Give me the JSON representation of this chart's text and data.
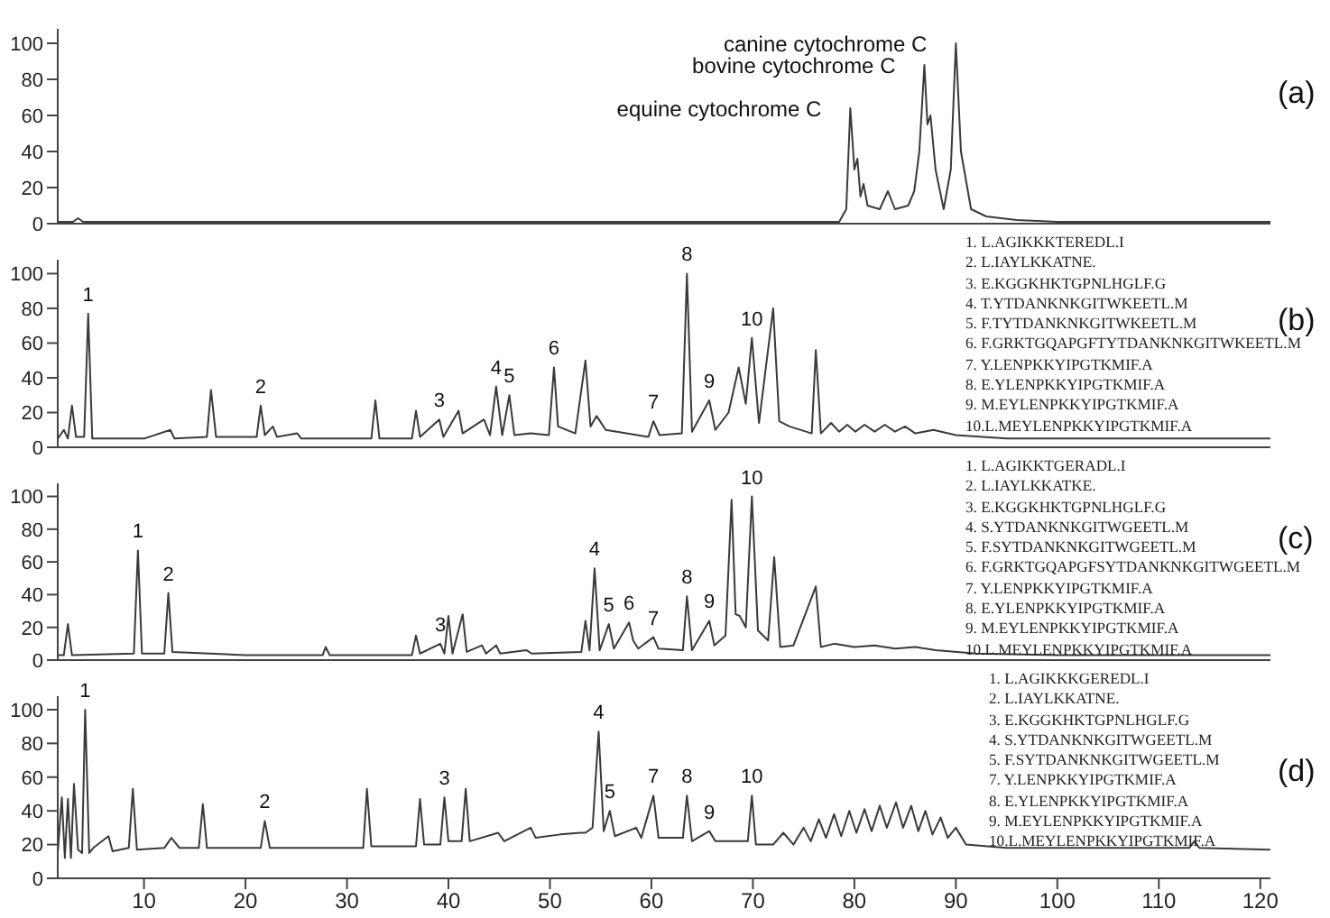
{
  "chart_data": [
    {
      "type": "line",
      "title": "(a)",
      "color": "#3a3a3a",
      "xlim": [
        1.5,
        121
      ],
      "xticks": [
        10,
        20,
        30,
        40,
        50,
        60,
        70,
        80,
        90,
        100,
        110,
        120
      ],
      "ylim": [
        0,
        108
      ],
      "yticks": [
        0,
        20,
        40,
        60,
        80,
        100
      ],
      "tick_labels": "y",
      "x": [
        1.5,
        3,
        3.5,
        4,
        20,
        40,
        60,
        78.5,
        79.2,
        79.6,
        80.0,
        80.3,
        80.6,
        80.9,
        81.3,
        82.5,
        83.3,
        84,
        85.3,
        85.9,
        86.4,
        86.9,
        87.2,
        87.5,
        88,
        88.8,
        89.5,
        90.0,
        90.5,
        91.5,
        93,
        96,
        100,
        110,
        121
      ],
      "values": [
        1,
        1,
        3,
        1,
        1,
        1,
        1,
        1,
        8,
        64,
        30,
        36,
        15,
        22,
        10,
        8,
        18,
        8,
        10,
        18,
        40,
        88,
        55,
        60,
        30,
        8,
        30,
        100,
        40,
        8,
        4,
        2,
        1,
        1,
        1
      ],
      "annotations": [
        {
          "text": "equine cytochrome C",
          "x": 79.6,
          "y": 64
        },
        {
          "text": "bovine cytochrome C",
          "x": 86.9,
          "y": 88
        },
        {
          "text": "canine cytochrome C",
          "x": 90.0,
          "y": 100
        }
      ]
    },
    {
      "type": "line",
      "title": "(b)",
      "color": "#3a3a3a",
      "xlim": [
        1.5,
        121
      ],
      "xticks": [
        10,
        20,
        30,
        40,
        50,
        60,
        70,
        80,
        90,
        100,
        110,
        120
      ],
      "ylim": [
        0,
        108
      ],
      "yticks": [
        0,
        20,
        40,
        60,
        80,
        100
      ],
      "tick_labels": "y",
      "x": [
        1.5,
        2.1,
        2.5,
        2.9,
        3.3,
        4.1,
        4.5,
        4.9,
        10,
        12.6,
        13,
        16.2,
        16.6,
        17.1,
        21.1,
        21.5,
        21.9,
        22.7,
        23.1,
        25.1,
        25.5,
        32.4,
        32.8,
        33.2,
        36.4,
        36.8,
        37.2,
        39.1,
        39.5,
        41.0,
        41.4,
        43.5,
        44.1,
        44.7,
        45.3,
        46.0,
        46.5,
        48.1,
        49.9,
        50.4,
        50.8,
        52.5,
        53.5,
        54,
        54.6,
        55.5,
        59.7,
        60.2,
        60.8,
        63.0,
        63.5,
        64.0,
        65.7,
        66.3,
        67.6,
        68.6,
        69.3,
        69.9,
        70.6,
        72.0,
        72.6,
        73.6,
        75.8,
        76.2,
        76.7,
        77.7,
        78.5,
        79.3,
        80.1,
        81,
        82,
        83,
        84,
        85,
        86,
        87.8,
        90,
        95,
        116,
        121
      ],
      "values": [
        5,
        10,
        5,
        24,
        6,
        6,
        77,
        5,
        5,
        10,
        5,
        6,
        33,
        6,
        6,
        24,
        7,
        12,
        6,
        8,
        5,
        5,
        27,
        5,
        5,
        21,
        6,
        16,
        6,
        21,
        8,
        16,
        7,
        35,
        7,
        30,
        7,
        8,
        7,
        46,
        12,
        8,
        50,
        12,
        18,
        10,
        6,
        15,
        7,
        8,
        100,
        9,
        27,
        10,
        20,
        46,
        25,
        63,
        14,
        80,
        15,
        12,
        8,
        56,
        8,
        14,
        9,
        13,
        9,
        13,
        9,
        13,
        9,
        12,
        8,
        10,
        7,
        5,
        5,
        5
      ],
      "annotations": [
        {
          "text": "1",
          "x": 4.5,
          "y": 77
        },
        {
          "text": "2",
          "x": 21.5,
          "y": 24
        },
        {
          "text": "3",
          "x": 39.1,
          "y": 16
        },
        {
          "text": "4",
          "x": 44.7,
          "y": 35
        },
        {
          "text": "5",
          "x": 46.0,
          "y": 30
        },
        {
          "text": "6",
          "x": 50.4,
          "y": 46
        },
        {
          "text": "7",
          "x": 60.2,
          "y": 15
        },
        {
          "text": "8",
          "x": 63.5,
          "y": 100
        },
        {
          "text": "9",
          "x": 65.7,
          "y": 27
        },
        {
          "text": "10",
          "x": 69.9,
          "y": 63
        },
        "1. L.AGIKKKTEREDL.I",
        "2. L.IAYLKKATNE.",
        "3. E.KGGKHKTGPNLHGLF.G",
        "4. T.YTDANKNKGITWKEETL.M",
        "5. F.TYTDANKNKGITWKEETL.M",
        "6. F.GRKTGQAPGFTYTDANKNKGITWKEETL.M",
        "7. Y.LENPKKYIPGTKMIF.A",
        "8. E.YLENPKKYIPGTKMIF.A",
        "9. M.EYLENPKKYIPGTKMIF.A",
        "10.L.MEYLENPKKYIPGTKMIF.A"
      ]
    },
    {
      "type": "line",
      "title": "(c)",
      "color": "#3a3a3a",
      "xlim": [
        1.5,
        121
      ],
      "xticks": [
        10,
        20,
        30,
        40,
        50,
        60,
        70,
        80,
        90,
        100,
        110,
        120
      ],
      "ylim": [
        0,
        108
      ],
      "yticks": [
        0,
        20,
        40,
        60,
        80,
        100
      ],
      "tick_labels": "y",
      "x": [
        1.5,
        2.1,
        2.5,
        2.9,
        9.0,
        9.4,
        9.8,
        12.0,
        12.4,
        12.8,
        20,
        27.6,
        27.9,
        28.3,
        36.4,
        36.8,
        37.2,
        39.2,
        39.6,
        40.0,
        40.4,
        41.4,
        41.8,
        43.3,
        43.7,
        44.7,
        45.1,
        47.7,
        48.2,
        53.1,
        53.5,
        53.9,
        54.4,
        54.9,
        55.8,
        56.3,
        57.8,
        58.2,
        58.7,
        60.2,
        60.7,
        63.1,
        63.5,
        64.0,
        65.7,
        66.2,
        67.3,
        67.9,
        68.3,
        68.7,
        69.3,
        69.9,
        70.5,
        71.5,
        72.1,
        72.7,
        74,
        76.2,
        76.7,
        78,
        80,
        82,
        84,
        86,
        88,
        92,
        100,
        121
      ],
      "values": [
        3,
        3,
        22,
        3,
        4,
        67,
        4,
        4,
        41,
        5,
        3,
        3,
        8,
        3,
        3,
        15,
        4,
        10,
        4,
        27,
        4,
        28,
        5,
        9,
        4,
        9,
        4,
        6,
        4,
        5,
        24,
        6,
        56,
        6,
        22,
        7,
        23,
        12,
        7,
        14,
        7,
        6,
        39,
        6,
        24,
        9,
        15,
        98,
        28,
        27,
        20,
        100,
        18,
        12,
        63,
        8,
        9,
        45,
        8,
        10,
        8,
        9,
        7,
        8,
        6,
        4,
        3,
        3
      ],
      "annotations": [
        {
          "text": "1",
          "x": 9.4,
          "y": 67
        },
        {
          "text": "2",
          "x": 12.4,
          "y": 41
        },
        {
          "text": "3",
          "x": 39.2,
          "y": 10
        },
        {
          "text": "4",
          "x": 54.4,
          "y": 56
        },
        {
          "text": "5",
          "x": 55.8,
          "y": 22
        },
        {
          "text": "6",
          "x": 57.8,
          "y": 23
        },
        {
          "text": "7",
          "x": 60.2,
          "y": 14
        },
        {
          "text": "8",
          "x": 63.5,
          "y": 39
        },
        {
          "text": "9",
          "x": 65.7,
          "y": 24
        },
        {
          "text": "10",
          "x": 69.9,
          "y": 100
        },
        "1. L.AGIKKTGERADL.I",
        "2. L.IAYLKKATKE.",
        "3. E.KGGKHKTGPNLHGLF.G",
        "4. S.YTDANKNKGITWGEETL.M",
        "5. F.SYTDANKNKGITWGEETL.M",
        "6. F.GRKTGQAPGFSYTDANKNKGITWGEETL.M",
        "7. Y.LENPKKYIPGTKMIF.A",
        "8. E.YLENPKKYIPGTKMIF.A",
        "9. M.EYLENPKKYIPGTKMIF.A",
        "10.L.MEYLENPKKYIPGTKMIF.A"
      ]
    },
    {
      "type": "line",
      "title": "(d)",
      "color": "#3a3a3a",
      "xlim": [
        1.5,
        121
      ],
      "xticks": [
        10,
        20,
        30,
        40,
        50,
        60,
        70,
        80,
        90,
        100,
        110,
        120
      ],
      "ylim": [
        0,
        108
      ],
      "yticks": [
        0,
        20,
        40,
        60,
        80,
        100
      ],
      "x": [
        1.5,
        1.9,
        2.2,
        2.5,
        2.8,
        3.1,
        3.5,
        3.9,
        4.2,
        4.6,
        5,
        6.5,
        6.9,
        8.5,
        8.9,
        9.3,
        12,
        12.7,
        13.5,
        15.4,
        15.8,
        16.2,
        21.5,
        21.9,
        22.4,
        28,
        31.6,
        31.97,
        32.4,
        36.8,
        37.2,
        37.6,
        39.2,
        39.6,
        40,
        41.3,
        41.7,
        42.1,
        44.9,
        45.5,
        48.1,
        48.6,
        51,
        53,
        53.5,
        54.2,
        54.8,
        55.3,
        55.9,
        56.4,
        58.5,
        59,
        60.2,
        60.7,
        63.1,
        63.5,
        64,
        65.7,
        66.3,
        69.5,
        69.9,
        70.3,
        72,
        73,
        74,
        75,
        75.7,
        76.5,
        77.2,
        78,
        78.7,
        79.5,
        80.2,
        81,
        81.7,
        82.5,
        83.2,
        84.1,
        84.8,
        85.6,
        86.3,
        87,
        87.7,
        88.5,
        89.2,
        90,
        91,
        95,
        105,
        113,
        113.5,
        114,
        121
      ],
      "values": [
        15,
        48,
        12,
        47,
        12,
        56,
        17,
        15,
        100,
        15,
        18,
        25,
        16,
        18,
        53,
        17,
        18,
        24,
        18,
        18,
        44,
        18,
        18,
        34,
        18,
        18,
        18,
        53,
        19,
        19,
        47,
        20,
        20,
        48,
        22,
        22,
        53,
        22,
        27,
        22,
        30,
        24,
        26,
        27,
        27,
        30,
        87,
        28,
        40,
        25,
        30,
        24,
        49,
        24,
        24,
        49,
        22,
        28,
        22,
        22,
        49,
        20,
        20,
        27,
        20,
        30,
        22,
        35,
        24,
        38,
        25,
        40,
        27,
        41,
        28,
        43,
        30,
        45,
        30,
        43,
        28,
        40,
        26,
        36,
        24,
        30,
        20,
        18,
        18,
        18,
        22,
        18,
        17
      ],
      "annotations": [
        {
          "text": "1",
          "x": 4.2,
          "y": 100
        },
        {
          "text": "2",
          "x": 21.9,
          "y": 34
        },
        {
          "text": "3",
          "x": 39.6,
          "y": 48
        },
        {
          "text": "4",
          "x": 54.8,
          "y": 87
        },
        {
          "text": "5",
          "x": 55.9,
          "y": 40
        },
        {
          "text": "7",
          "x": 60.2,
          "y": 49
        },
        {
          "text": "8",
          "x": 63.5,
          "y": 49
        },
        {
          "text": "9",
          "x": 65.7,
          "y": 28
        },
        {
          "text": "10",
          "x": 69.9,
          "y": 49
        },
        "1. L.AGIKKKGEREDL.I",
        "2. L.IAYLKKATNE.",
        "3. E.KGGKHKTGPNLHGLF.G",
        "4. S.YTDANKNKGITWGEETL.M",
        "5. F.SYTDANKNKGITWGEETL.M",
        "7. Y.LENPKKYIPGTKMIF.A",
        "8. E.YLENPKKYIPGTKMIF.A",
        "9. M.EYLENPKKYIPGTKMIF.A",
        "10.L.MEYLENPKKYIPGTKMIF.A"
      ]
    }
  ]
}
